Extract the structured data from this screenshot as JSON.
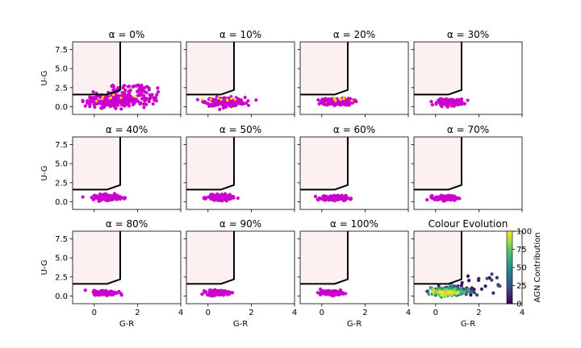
{
  "colors": {
    "points": "#cc00cc",
    "agn_points": "#ffd700",
    "region_fill": "#fdf0f0",
    "boundary": "#000000",
    "colormap": [
      "#440154",
      "#3b528b",
      "#21918c",
      "#5ec962",
      "#fde725"
    ]
  },
  "chart_data": {
    "type": "scatter",
    "grid": false,
    "xlabel": "G-R",
    "ylabel": "U-G",
    "xlim": [
      -1,
      4
    ],
    "ylim": [
      -1,
      8.5
    ],
    "xticks": [
      "0",
      "2",
      "4"
    ],
    "yticks": [
      "0.0",
      "2.5",
      "5.0",
      "7.5"
    ],
    "boundary_line": [
      [
        -1,
        1.6
      ],
      [
        0.6,
        1.6
      ],
      [
        1.2,
        2.2
      ],
      [
        1.2,
        8.5
      ]
    ],
    "panels": [
      {
        "title": "α = 0%",
        "cluster": {
          "cx": 0.8,
          "cy": 0.8,
          "sx": 0.55,
          "sy": 0.45,
          "n": 320,
          "tail": true
        }
      },
      {
        "title": "α = 10%",
        "cluster": {
          "cx": 0.8,
          "cy": 0.65,
          "sx": 0.45,
          "sy": 0.28,
          "n": 220
        }
      },
      {
        "title": "α = 20%",
        "cluster": {
          "cx": 0.75,
          "cy": 0.65,
          "sx": 0.35,
          "sy": 0.22,
          "n": 200
        }
      },
      {
        "title": "α = 30%",
        "cluster": {
          "cx": 0.7,
          "cy": 0.6,
          "sx": 0.3,
          "sy": 0.2,
          "n": 180
        }
      },
      {
        "title": "α = 40%",
        "cluster": {
          "cx": 0.6,
          "cy": 0.6,
          "sx": 0.3,
          "sy": 0.18,
          "n": 170
        }
      },
      {
        "title": "α = 50%",
        "cluster": {
          "cx": 0.55,
          "cy": 0.55,
          "sx": 0.28,
          "sy": 0.17,
          "n": 160
        }
      },
      {
        "title": "α = 60%",
        "cluster": {
          "cx": 0.55,
          "cy": 0.5,
          "sx": 0.28,
          "sy": 0.16,
          "n": 160
        }
      },
      {
        "title": "α = 70%",
        "cluster": {
          "cx": 0.5,
          "cy": 0.5,
          "sx": 0.27,
          "sy": 0.16,
          "n": 150
        }
      },
      {
        "title": "α = 80%",
        "cluster": {
          "cx": 0.5,
          "cy": 0.45,
          "sx": 0.27,
          "sy": 0.15,
          "n": 150
        }
      },
      {
        "title": "α = 90%",
        "cluster": {
          "cx": 0.45,
          "cy": 0.45,
          "sx": 0.26,
          "sy": 0.15,
          "n": 140
        }
      },
      {
        "title": "α = 100%",
        "cluster": {
          "cx": 0.45,
          "cy": 0.4,
          "sx": 0.26,
          "sy": 0.14,
          "n": 140
        }
      },
      {
        "title": "Colour Evolution",
        "evolution": true
      }
    ],
    "colorbar": {
      "label": "AGN Contribution",
      "range": [
        0,
        100
      ],
      "ticks": [
        "0",
        "25",
        "50",
        "75",
        "100"
      ]
    }
  }
}
